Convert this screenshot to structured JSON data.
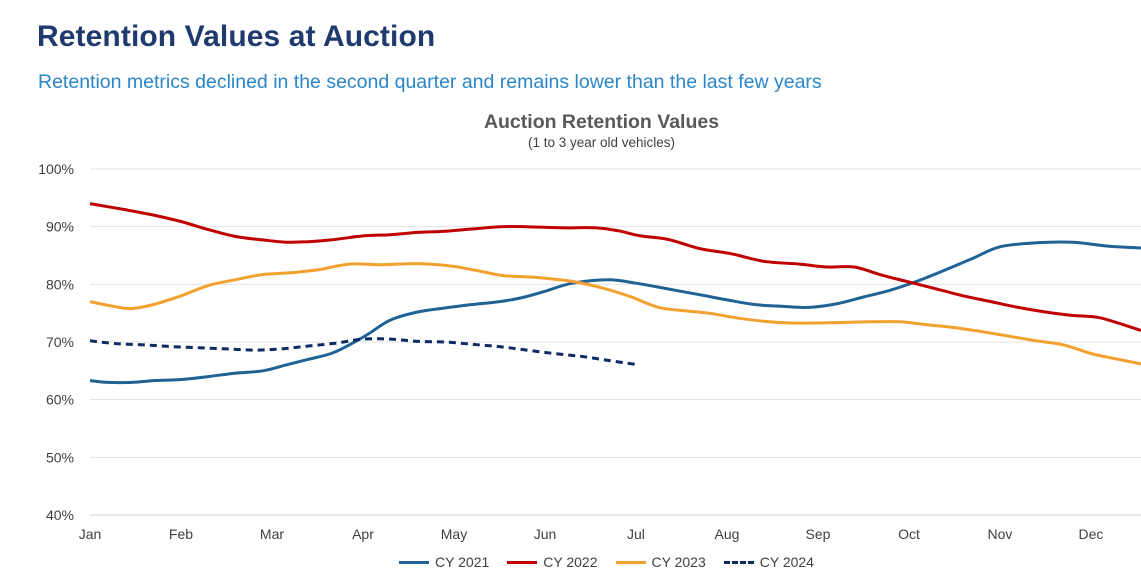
{
  "header": {
    "title": "Retention Values at Auction",
    "subtitle": "Retention metrics declined in the second quarter and remains lower than the last few years"
  },
  "chart_data": {
    "type": "line",
    "title": "Auction Retention Values",
    "subtitle": "(1 to 3 year old vehicles)",
    "xlabel": "",
    "ylabel": "",
    "ylim": [
      40,
      100
    ],
    "yticks": [
      "40%",
      "50%",
      "60%",
      "70%",
      "80%",
      "90%",
      "100%"
    ],
    "x_tick_labels": [
      "Jan",
      "Feb",
      "Mar",
      "Apr",
      "May",
      "Jun",
      "Jul",
      "Aug",
      "Sep",
      "Oct",
      "Nov",
      "Dec"
    ],
    "x_range": [
      1,
      12.55
    ],
    "grid": "horizontal",
    "legend_position": "bottom",
    "series": [
      {
        "name": "CY 2021",
        "color": "#1f6295",
        "dash": "solid",
        "x": [
          1,
          1.2,
          1.45,
          1.7,
          2,
          2.3,
          2.6,
          2.9,
          3.15,
          3.4,
          3.65,
          3.85,
          4.05,
          4.3,
          4.6,
          4.9,
          5.2,
          5.5,
          5.75,
          6,
          6.3,
          6.7,
          7,
          7.35,
          7.7,
          8,
          8.3,
          8.6,
          8.9,
          9.2,
          9.5,
          9.8,
          10.1,
          10.4,
          10.7,
          11.0,
          11.4,
          11.8,
          12.2,
          12.55
        ],
        "y": [
          63.3,
          63.0,
          63.0,
          63.3,
          63.5,
          64.0,
          64.6,
          65.0,
          66.0,
          67.0,
          68.0,
          69.5,
          71.3,
          73.8,
          75.2,
          75.9,
          76.5,
          77.0,
          77.7,
          78.8,
          80.2,
          80.8,
          80.2,
          79.2,
          78.2,
          77.3,
          76.5,
          76.2,
          76.0,
          76.6,
          77.8,
          79.0,
          80.6,
          82.5,
          84.5,
          86.5,
          87.2,
          87.3,
          86.6,
          86.3
        ]
      },
      {
        "name": "CY 2022",
        "color": "#c00000",
        "dash": "solid",
        "x": [
          1,
          1.4,
          1.7,
          2,
          2.3,
          2.6,
          2.9,
          3.15,
          3.4,
          3.65,
          4,
          4.3,
          4.6,
          4.9,
          5.2,
          5.5,
          5.8,
          6.2,
          6.55,
          6.8,
          7.05,
          7.35,
          7.7,
          8.05,
          8.4,
          8.8,
          9.1,
          9.4,
          9.7,
          10.0,
          10.3,
          10.6,
          10.9,
          11.2,
          11.5,
          11.8,
          12.1,
          12.55
        ],
        "y": [
          94.0,
          92.9,
          92.0,
          90.9,
          89.5,
          88.3,
          87.7,
          87.3,
          87.4,
          87.7,
          88.4,
          88.6,
          89.0,
          89.2,
          89.6,
          90.0,
          90.0,
          89.8,
          89.8,
          89.3,
          88.4,
          87.8,
          86.2,
          85.3,
          84.0,
          83.5,
          83.0,
          83.0,
          81.6,
          80.4,
          79.2,
          78.0,
          77.0,
          76.0,
          75.2,
          74.6,
          74.2,
          72.0
        ]
      },
      {
        "name": "CY 2023",
        "color": "#f2a12f",
        "dash": "solid",
        "x": [
          1,
          1.25,
          1.45,
          1.7,
          2,
          2.3,
          2.6,
          2.9,
          3.2,
          3.5,
          3.85,
          4.2,
          4.6,
          4.95,
          5.25,
          5.55,
          5.9,
          6.3,
          6.65,
          6.95,
          7.25,
          7.55,
          7.8,
          8.1,
          8.4,
          8.7,
          9,
          9.3,
          9.6,
          9.9,
          10.2,
          10.5,
          10.8,
          11.1,
          11.4,
          11.7,
          12,
          12.3,
          12.55
        ],
        "y": [
          77.0,
          76.2,
          75.8,
          76.5,
          78.0,
          79.8,
          80.8,
          81.7,
          82.0,
          82.5,
          83.5,
          83.4,
          83.6,
          83.2,
          82.4,
          81.5,
          81.2,
          80.5,
          79.3,
          77.8,
          76.0,
          75.4,
          75.0,
          74.2,
          73.6,
          73.3,
          73.3,
          73.4,
          73.5,
          73.5,
          73.0,
          72.5,
          71.8,
          71.0,
          70.2,
          69.5,
          68.0,
          67.0,
          66.2
        ]
      },
      {
        "name": "CY 2024",
        "color": "#0d2b61",
        "dash": "dashed",
        "x": [
          1,
          1.3,
          1.6,
          1.9,
          2.2,
          2.5,
          2.8,
          3.1,
          3.4,
          3.7,
          4,
          4.3,
          4.6,
          4.9,
          5.2,
          5.5,
          5.8,
          6.1,
          6.4,
          6.7,
          7
        ],
        "y": [
          70.2,
          69.7,
          69.5,
          69.2,
          69.0,
          68.8,
          68.6,
          68.8,
          69.3,
          69.8,
          70.5,
          70.5,
          70.1,
          70.0,
          69.6,
          69.2,
          68.6,
          68.0,
          67.5,
          66.8,
          66.1
        ]
      }
    ]
  }
}
